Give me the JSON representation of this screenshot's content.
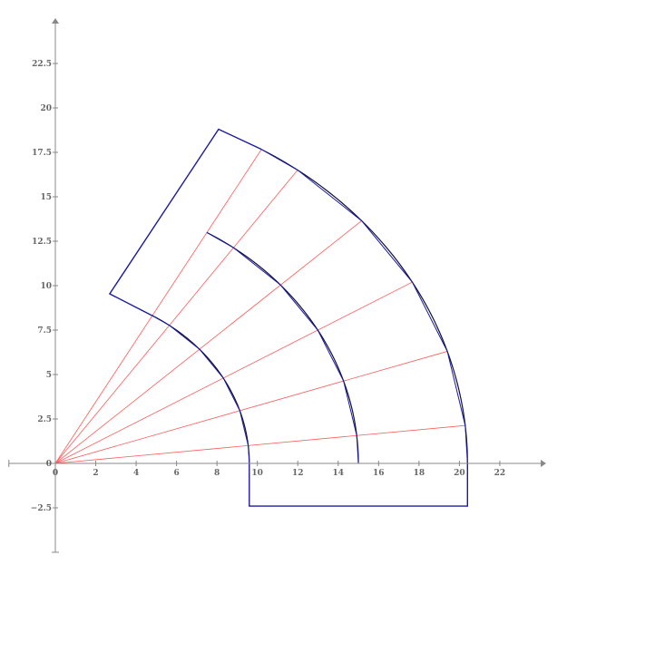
{
  "chart_data": {
    "type": "line",
    "title": "",
    "xlabel": "",
    "ylabel": "",
    "xlim": [
      -2.3,
      24
    ],
    "ylim": [
      -5,
      25
    ],
    "grid": false,
    "x_ticks": [
      "0",
      "2",
      "4",
      "6",
      "8",
      "10",
      "12",
      "14",
      "16",
      "18",
      "20",
      "22"
    ],
    "x_tick_values": [
      0,
      2,
      4,
      6,
      8,
      10,
      12,
      14,
      16,
      18,
      20,
      22
    ],
    "y_ticks": [
      "−2.5",
      "0",
      "2.5",
      "5",
      "7.5",
      "10",
      "12.5",
      "15",
      "17.5",
      "20",
      "22.5"
    ],
    "y_tick_values": [
      -2.5,
      0,
      2.5,
      5,
      7.5,
      10,
      12.5,
      15,
      17.5,
      20,
      22.5
    ],
    "colors": {
      "axis": "#888888",
      "rays": "#ff5a5a",
      "outline": "#1a1aa0",
      "arcs": "#111133"
    },
    "rays": {
      "origin": [
        0,
        0
      ],
      "radius": 20.4,
      "angles_deg": [
        0,
        6,
        18,
        30,
        42,
        54,
        60
      ]
    },
    "arcs": [
      {
        "radius": 9.6,
        "from_deg": 0,
        "to_deg": 60
      },
      {
        "radius": 15.0,
        "from_deg": 0,
        "to_deg": 60
      },
      {
        "radius": 20.4,
        "from_deg": 0,
        "to_deg": 60
      }
    ],
    "polyline_angles_deg": [
      0,
      6,
      18,
      30,
      42,
      54,
      60
    ],
    "end_box_top": [
      [
        10.2,
        17.67
      ],
      [
        8.08,
        18.8
      ],
      [
        2.69,
        9.54
      ],
      [
        4.8,
        8.31
      ]
    ],
    "end_box_bottom": [
      [
        9.6,
        0
      ],
      [
        9.6,
        -2.4
      ],
      [
        20.4,
        -2.4
      ],
      [
        20.4,
        0
      ]
    ]
  }
}
